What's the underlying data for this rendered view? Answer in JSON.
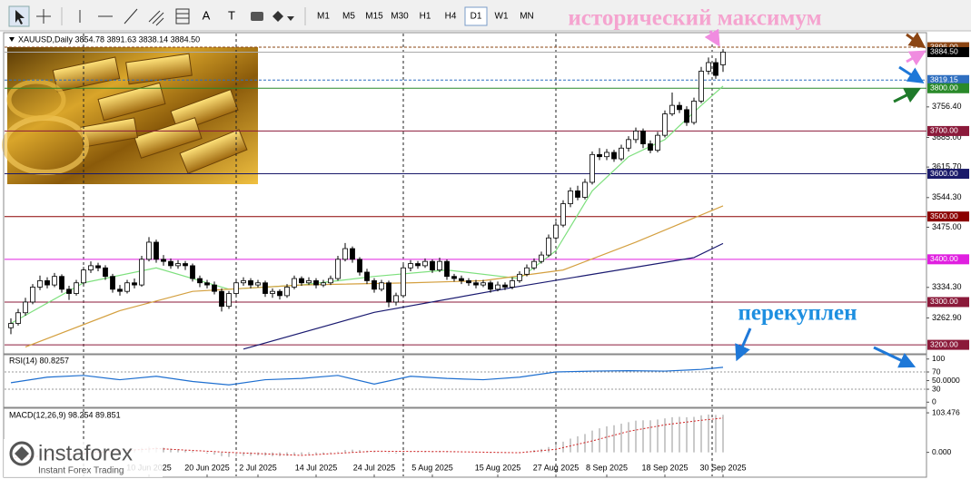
{
  "toolbar": {
    "tools": [
      "A",
      "T"
    ],
    "timeframes": [
      "M1",
      "M5",
      "M15",
      "M30",
      "H1",
      "H4",
      "D1",
      "W1",
      "MN"
    ],
    "active_timeframe": "D1"
  },
  "annotations": {
    "top": "исторический максимум",
    "overbought": "перекуплен"
  },
  "logo": {
    "name": "instaforex",
    "tagline": "Instant Forex Trading"
  },
  "chart_data": [
    {
      "type": "candlestick",
      "title": "XAUUSD,Daily  3854.78 3891.63 3838.14 3884.50",
      "ylim": [
        3179,
        3930
      ],
      "yticks": [
        {
          "value": 3756.4,
          "label": "3756.40"
        },
        {
          "value": 3685,
          "label": "3685.00"
        },
        {
          "value": 3615.7,
          "label": "3615.70"
        },
        {
          "value": 3544.3,
          "label": "3544.30"
        },
        {
          "value": 3475,
          "label": "3475.00"
        },
        {
          "value": 3334.3,
          "label": "3334.30"
        },
        {
          "value": 3262.9,
          "label": "3262.90"
        }
      ],
      "xticks": [
        {
          "value": 19,
          "label": "10 Jun 2025"
        },
        {
          "value": 27,
          "label": "20 Jun 2025"
        },
        {
          "value": 34,
          "label": "2 Jul 2025"
        },
        {
          "value": 42,
          "label": "14 Jul 2025"
        },
        {
          "value": 50,
          "label": "24 Jul 2025"
        },
        {
          "value": 58,
          "label": "5 Aug 2025"
        },
        {
          "value": 67,
          "label": "15 Aug 2025"
        },
        {
          "value": 75,
          "label": "27 Aug 2025"
        },
        {
          "value": 82,
          "label": "8 Sep 2025"
        },
        {
          "value": 90,
          "label": "18 Sep 2025"
        },
        {
          "value": 98,
          "label": "30 Sep 2025"
        }
      ],
      "period_separators": [
        10,
        31,
        54,
        75,
        96.5
      ],
      "current_price": {
        "value": 3884.5,
        "label": "3884.50"
      },
      "levels": [
        {
          "value": 3896,
          "label": "3896.00",
          "color": "#8b4513",
          "dashed": true
        },
        {
          "value": 3819.15,
          "label": "3819.15",
          "color": "#2f6fc0",
          "dashed": true
        },
        {
          "value": 3800,
          "label": "3800.00",
          "color": "#2a8a2a",
          "dashed": false
        },
        {
          "value": 3700,
          "label": "3700.00",
          "color": "#8b1a3a",
          "dashed": false
        },
        {
          "value": 3600,
          "label": "3600.00",
          "color": "#1a1a6a",
          "dashed": false
        },
        {
          "value": 3500,
          "label": "3500.00",
          "color": "#8b0000",
          "dashed": false
        },
        {
          "value": 3400,
          "label": "3400.00",
          "color": "#e020e0",
          "dashed": false
        },
        {
          "value": 3300,
          "label": "3300.00",
          "color": "#8b1a3a",
          "dashed": false
        },
        {
          "value": 3200,
          "label": "3200.00",
          "color": "#8b1a3a",
          "dashed": false
        }
      ],
      "candles": [
        [
          3240,
          3262,
          3225,
          3250
        ],
        [
          3250,
          3284,
          3245,
          3275
        ],
        [
          3275,
          3310,
          3268,
          3300
        ],
        [
          3300,
          3342,
          3295,
          3335
        ],
        [
          3335,
          3362,
          3328,
          3350
        ],
        [
          3350,
          3358,
          3332,
          3340
        ],
        [
          3340,
          3368,
          3335,
          3360
        ],
        [
          3360,
          3365,
          3322,
          3330
        ],
        [
          3330,
          3338,
          3305,
          3320
        ],
        [
          3320,
          3352,
          3315,
          3345
        ],
        [
          3345,
          3382,
          3340,
          3375
        ],
        [
          3375,
          3395,
          3368,
          3385
        ],
        [
          3385,
          3392,
          3372,
          3380
        ],
        [
          3380,
          3386,
          3352,
          3360
        ],
        [
          3360,
          3366,
          3322,
          3330
        ],
        [
          3330,
          3340,
          3315,
          3325
        ],
        [
          3325,
          3352,
          3320,
          3345
        ],
        [
          3345,
          3355,
          3332,
          3340
        ],
        [
          3340,
          3408,
          3336,
          3400
        ],
        [
          3400,
          3452,
          3395,
          3440
        ],
        [
          3440,
          3446,
          3392,
          3400
        ],
        [
          3400,
          3410,
          3385,
          3395
        ],
        [
          3395,
          3402,
          3378,
          3385
        ],
        [
          3385,
          3398,
          3378,
          3390
        ],
        [
          3390,
          3396,
          3375,
          3385
        ],
        [
          3385,
          3390,
          3348,
          3355
        ],
        [
          3355,
          3362,
          3335,
          3345
        ],
        [
          3345,
          3352,
          3332,
          3340
        ],
        [
          3340,
          3348,
          3318,
          3325
        ],
        [
          3325,
          3332,
          3278,
          3290
        ],
        [
          3290,
          3326,
          3284,
          3320
        ],
        [
          3320,
          3352,
          3315,
          3345
        ],
        [
          3345,
          3358,
          3338,
          3350
        ],
        [
          3350,
          3356,
          3332,
          3340
        ],
        [
          3340,
          3352,
          3334,
          3345
        ],
        [
          3345,
          3350,
          3312,
          3320
        ],
        [
          3320,
          3332,
          3310,
          3325
        ],
        [
          3325,
          3330,
          3306,
          3315
        ],
        [
          3315,
          3342,
          3310,
          3335
        ],
        [
          3335,
          3362,
          3330,
          3355
        ],
        [
          3355,
          3360,
          3338,
          3345
        ],
        [
          3345,
          3358,
          3340,
          3350
        ],
        [
          3350,
          3356,
          3332,
          3340
        ],
        [
          3340,
          3352,
          3335,
          3345
        ],
        [
          3345,
          3362,
          3340,
          3355
        ],
        [
          3355,
          3408,
          3350,
          3400
        ],
        [
          3400,
          3438,
          3395,
          3425
        ],
        [
          3425,
          3430,
          3392,
          3400
        ],
        [
          3400,
          3405,
          3362,
          3370
        ],
        [
          3370,
          3378,
          3342,
          3350
        ],
        [
          3350,
          3356,
          3322,
          3330
        ],
        [
          3330,
          3352,
          3325,
          3345
        ],
        [
          3345,
          3350,
          3288,
          3300
        ],
        [
          3300,
          3322,
          3292,
          3315
        ],
        [
          3315,
          3388,
          3310,
          3380
        ],
        [
          3380,
          3398,
          3372,
          3390
        ],
        [
          3390,
          3396,
          3378,
          3385
        ],
        [
          3385,
          3402,
          3380,
          3395
        ],
        [
          3395,
          3400,
          3368,
          3375
        ],
        [
          3375,
          3404,
          3370,
          3395
        ],
        [
          3395,
          3400,
          3352,
          3360
        ],
        [
          3360,
          3366,
          3348,
          3355
        ],
        [
          3355,
          3362,
          3342,
          3350
        ],
        [
          3350,
          3356,
          3338,
          3345
        ],
        [
          3345,
          3352,
          3332,
          3340
        ],
        [
          3340,
          3352,
          3335,
          3345
        ],
        [
          3345,
          3350,
          3322,
          3330
        ],
        [
          3330,
          3348,
          3325,
          3340
        ],
        [
          3340,
          3346,
          3328,
          3335
        ],
        [
          3335,
          3358,
          3330,
          3350
        ],
        [
          3350,
          3372,
          3345,
          3365
        ],
        [
          3365,
          3388,
          3360,
          3380
        ],
        [
          3380,
          3402,
          3375,
          3395
        ],
        [
          3395,
          3418,
          3390,
          3410
        ],
        [
          3410,
          3458,
          3405,
          3450
        ],
        [
          3450,
          3488,
          3445,
          3480
        ],
        [
          3480,
          3538,
          3475,
          3530
        ],
        [
          3530,
          3568,
          3522,
          3560
        ],
        [
          3560,
          3572,
          3538,
          3545
        ],
        [
          3545,
          3588,
          3540,
          3580
        ],
        [
          3580,
          3652,
          3575,
          3645
        ],
        [
          3645,
          3660,
          3632,
          3640
        ],
        [
          3640,
          3658,
          3632,
          3650
        ],
        [
          3650,
          3656,
          3628,
          3635
        ],
        [
          3635,
          3668,
          3630,
          3660
        ],
        [
          3660,
          3688,
          3652,
          3680
        ],
        [
          3680,
          3708,
          3672,
          3700
        ],
        [
          3700,
          3706,
          3660,
          3670
        ],
        [
          3670,
          3678,
          3648,
          3655
        ],
        [
          3655,
          3698,
          3650,
          3690
        ],
        [
          3690,
          3748,
          3685,
          3740
        ],
        [
          3740,
          3790,
          3735,
          3760
        ],
        [
          3760,
          3768,
          3742,
          3750
        ],
        [
          3750,
          3758,
          3712,
          3720
        ],
        [
          3720,
          3778,
          3715,
          3770
        ],
        [
          3770,
          3850,
          3765,
          3840
        ],
        [
          3840,
          3872,
          3832,
          3860
        ],
        [
          3860,
          3870,
          3822,
          3830
        ],
        [
          3854.78,
          3891.63,
          3838.14,
          3884.5
        ]
      ],
      "series": [
        {
          "color": "#7ee07e",
          "x": [
            0,
            10,
            20,
            30,
            40,
            50,
            60,
            70,
            75,
            80,
            85,
            90,
            95,
            98
          ],
          "values": [
            3250,
            3345,
            3380,
            3330,
            3340,
            3360,
            3375,
            3355,
            3420,
            3560,
            3640,
            3680,
            3760,
            3805
          ]
        },
        {
          "color": "#d4a040",
          "x": [
            2,
            15,
            25,
            40,
            55,
            65,
            76,
            86,
            98
          ],
          "values": [
            3195,
            3280,
            3325,
            3340,
            3345,
            3350,
            3375,
            3440,
            3525
          ]
        },
        {
          "color": "#1a1a70",
          "x": [
            32,
            50,
            69,
            79,
            94,
            98
          ],
          "values": [
            3190,
            3276,
            3334,
            3362,
            3404,
            3437
          ]
        }
      ]
    },
    {
      "type": "line",
      "title": "RSI(14) 80.8257",
      "ylim": [
        -12,
        110
      ],
      "yticks": [
        100,
        70,
        {
          "value": 50,
          "label": "50.0000"
        },
        30,
        0
      ],
      "levels": [
        70,
        30
      ],
      "series": [
        {
          "color": "#1e6fd0",
          "x": [
            0,
            5,
            10,
            15,
            20,
            25,
            30,
            35,
            40,
            45,
            50,
            55,
            60,
            65,
            70,
            75,
            80,
            85,
            90,
            95,
            98
          ],
          "values": [
            45,
            58,
            62,
            52,
            60,
            48,
            40,
            52,
            55,
            62,
            42,
            60,
            55,
            52,
            58,
            70,
            72,
            73,
            72,
            76,
            80.8257
          ]
        }
      ]
    },
    {
      "type": "bar",
      "title": "MACD(12,26,9) 98.254 89.851",
      "ylim": [
        -65,
        115.5
      ],
      "yticks": [
        103.476,
        {
          "value": 0,
          "label": "0.000"
        }
      ],
      "color": "#b8b8b8",
      "values": [
        -20,
        -15,
        -10,
        -5,
        0,
        3,
        5,
        6,
        8,
        10,
        12,
        13,
        12,
        10,
        8,
        7,
        6,
        8,
        12,
        15,
        14,
        12,
        10,
        8,
        6,
        3,
        0,
        -3,
        -6,
        -10,
        -12,
        -10,
        -9,
        -9,
        -8,
        -9,
        -10,
        -10,
        -9,
        -7,
        -6,
        -5,
        -5,
        -4,
        -2,
        2,
        6,
        7,
        6,
        4,
        2,
        1,
        -2,
        -3,
        -1,
        1,
        2,
        3,
        3,
        4,
        3,
        2,
        1,
        0,
        -1,
        -1,
        -2,
        -2,
        -2,
        -1,
        1,
        3,
        6,
        9,
        14,
        20,
        28,
        36,
        42,
        48,
        57,
        63,
        68,
        71,
        75,
        79,
        83,
        84,
        84,
        86,
        89,
        92,
        93,
        92,
        93,
        97,
        99,
        98,
        98.254
      ],
      "signal": {
        "color": "#d02020",
        "x": [
          0,
          20,
          30,
          40,
          50,
          60,
          70,
          75,
          80,
          85,
          90,
          95,
          98
        ],
        "values": [
          -15,
          10,
          0,
          -8,
          3,
          2,
          -1,
          8,
          30,
          55,
          72,
          84,
          89.851
        ]
      }
    }
  ]
}
